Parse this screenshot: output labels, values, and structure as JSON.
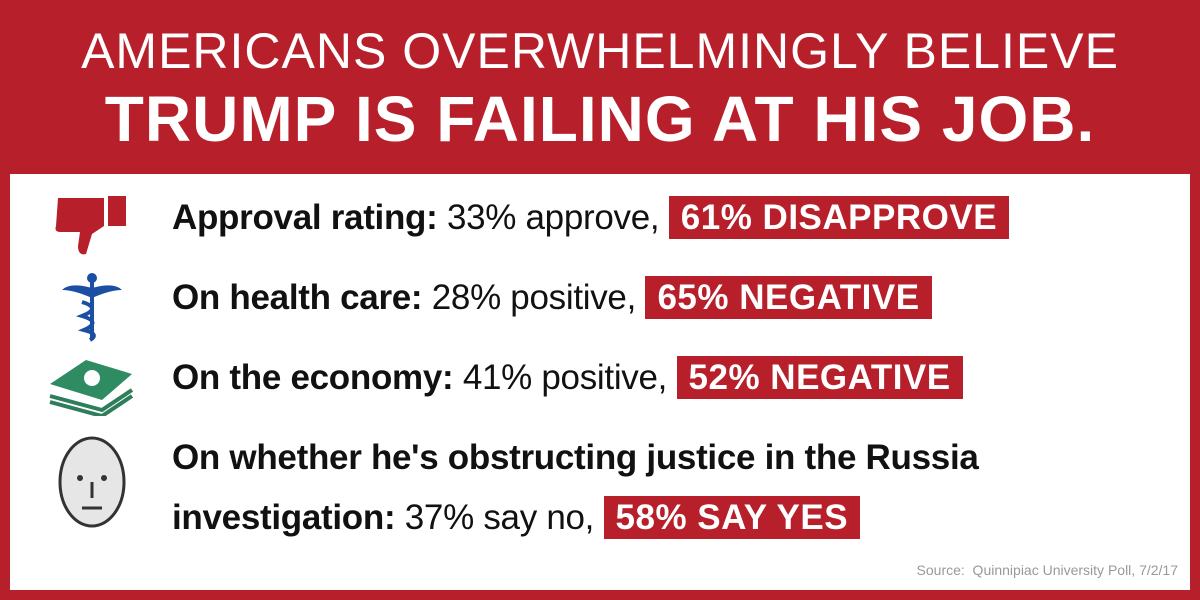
{
  "header": {
    "line1": "AMERICANS OVERWHELMINGLY BELIEVE",
    "line2": "TRUMP IS FAILING AT HIS JOB."
  },
  "items": [
    {
      "label": "Approval rating:",
      "neutral": "33% approve,",
      "highlight": "61% DISAPPROVE"
    },
    {
      "label": "On health care:",
      "neutral": "28% positive,",
      "highlight": "65% NEGATIVE"
    },
    {
      "label": "On the economy:",
      "neutral": "41% positive,",
      "highlight": "52% NEGATIVE"
    },
    {
      "label": "On whether he's obstructing justice in the Russia investigation:",
      "neutral": "37% say no,",
      "highlight": "58% SAY YES"
    }
  ],
  "source": "Source:  Quinnipiac University Poll, 7/2/17"
}
